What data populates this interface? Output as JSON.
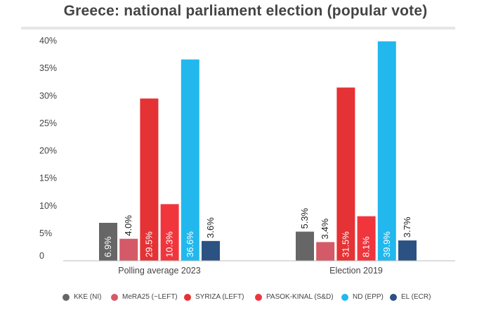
{
  "chart_data": {
    "type": "bar",
    "title": "Greece: national parliament election (popular vote)",
    "categories": [
      "Polling average 2023",
      "Election 2019"
    ],
    "ylim": [
      0,
      40
    ],
    "yticks": [
      "",
      "5%",
      "10%",
      "15%",
      "20%",
      "25%",
      "30%",
      "35%",
      "40%"
    ],
    "ytick_values": [
      0,
      5,
      10,
      15,
      20,
      25,
      30,
      35,
      40
    ],
    "grid": false,
    "legend_position": "bottom",
    "series": [
      {
        "name": "KKE (NI)",
        "color": "#666666",
        "values": [
          6.9,
          5.3
        ],
        "labels": [
          "6.9%",
          "5.3%"
        ],
        "label_inside": [
          true,
          false
        ]
      },
      {
        "name": "MeRA25 (~LEFT)",
        "color": "#d45a67",
        "values": [
          4.0,
          3.4
        ],
        "labels": [
          "4.0%",
          "3.4%"
        ],
        "label_inside": [
          false,
          false
        ]
      },
      {
        "name": "SYRIZA (LEFT)",
        "color": "#e53234",
        "values": [
          29.5,
          31.5
        ],
        "labels": [
          "29.5%",
          "31.5%"
        ],
        "label_inside": [
          true,
          true
        ]
      },
      {
        "name": "PASOK-KINAL (S&D)",
        "color": "#f0353d",
        "values": [
          10.3,
          8.1
        ],
        "labels": [
          "10.3%",
          "8.1%"
        ],
        "label_inside": [
          true,
          true
        ]
      },
      {
        "name": "ND (EPP)",
        "color": "#22b8ee",
        "values": [
          36.6,
          39.9
        ],
        "labels": [
          "36.6%",
          "39.9%"
        ],
        "label_inside": [
          true,
          true
        ]
      },
      {
        "name": "EL (ECR)",
        "color": "#2b5283",
        "values": [
          3.6,
          3.7
        ],
        "labels": [
          "3.6%",
          "3.7%"
        ],
        "label_inside": [
          false,
          false
        ]
      }
    ]
  }
}
